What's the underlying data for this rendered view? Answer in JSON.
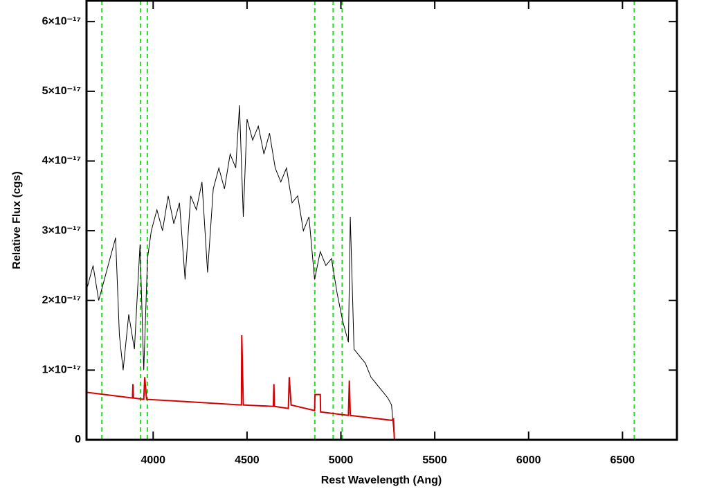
{
  "chart_data": {
    "type": "line",
    "x_label": "Rest Wavelength (Ang)",
    "y_label": "Relative Flux (cgs)",
    "xlim": [
      3645,
      6790
    ],
    "ylim": [
      0,
      6.3e-17
    ],
    "xticks": [
      4000,
      4500,
      5000,
      5500,
      6000,
      6500
    ],
    "yticks": [
      0,
      {
        "value": 1e-17,
        "label": "1×10⁻¹⁷"
      },
      {
        "value": 2e-17,
        "label": "2×10⁻¹⁷"
      },
      {
        "value": 3e-17,
        "label": "3×10⁻¹⁷"
      },
      {
        "value": 4e-17,
        "label": "4×10⁻¹⁷"
      },
      {
        "value": 5e-17,
        "label": "5×10⁻¹⁷"
      },
      {
        "value": 6e-17,
        "label": "6×10⁻¹⁷"
      }
    ],
    "series": [
      {
        "color": "#000000",
        "x": [
          3650,
          3680,
          3710,
          3740,
          3770,
          3800,
          3820,
          3840,
          3870,
          3900,
          3930,
          3950,
          3970,
          3990,
          4020,
          4050,
          4080,
          4110,
          4140,
          4170,
          4200,
          4230,
          4260,
          4290,
          4320,
          4350,
          4380,
          4410,
          4440,
          4460,
          4480,
          4500,
          4530,
          4560,
          4590,
          4620,
          4650,
          4680,
          4710,
          4740,
          4770,
          4800,
          4830,
          4860,
          4890,
          4920,
          4950,
          4980,
          5010,
          5040,
          5050,
          5070,
          5100,
          5130,
          5160,
          5190,
          5220,
          5250,
          5270,
          5285,
          6790
        ],
        "values": [
          2.2e-17,
          2.5e-17,
          2e-17,
          2.3e-17,
          2.6e-17,
          2.9e-17,
          1.5e-17,
          1e-17,
          1.8e-17,
          1.3e-17,
          2.8e-17,
          1e-17,
          2.6e-17,
          3e-17,
          3.3e-17,
          3e-17,
          3.5e-17,
          3.1e-17,
          3.4e-17,
          2.3e-17,
          3.5e-17,
          3.3e-17,
          3.7e-17,
          2.4e-17,
          3.6e-17,
          3.9e-17,
          3.6e-17,
          4.1e-17,
          3.9e-17,
          4.8e-17,
          3.2e-17,
          4.6e-17,
          4.3e-17,
          4.5e-17,
          4.1e-17,
          4.4e-17,
          3.9e-17,
          3.7e-17,
          3.9e-17,
          3.4e-17,
          3.5e-17,
          3e-17,
          3.2e-17,
          2.3e-17,
          2.7e-17,
          2.5e-17,
          2.6e-17,
          2.1e-17,
          1.7e-17,
          1.4e-17,
          3.2e-17,
          1.3e-17,
          1.2e-17,
          1.1e-17,
          9e-18,
          8e-18,
          7e-18,
          6e-18,
          5e-18,
          0,
          0
        ]
      },
      {
        "color": "#d40000",
        "x": [
          3650,
          3890,
          3892,
          3895,
          3950,
          3955,
          3965,
          4170,
          4470,
          4472,
          4480,
          4640,
          4643,
          4646,
          4720,
          4725,
          4735,
          4860,
          4862,
          4890,
          4892,
          5040,
          5045,
          5050,
          5270,
          5280,
          5285,
          6790
        ],
        "values": [
          6.8e-18,
          6e-18,
          8e-18,
          6e-18,
          5.8e-18,
          9e-18,
          5.8e-18,
          5.5e-18,
          5e-18,
          1.5e-17,
          5e-18,
          4.8e-18,
          8e-18,
          4.8e-18,
          4.5e-18,
          9e-18,
          5e-18,
          4.2e-18,
          6.5e-18,
          6.5e-18,
          4e-18,
          3.5e-18,
          8.5e-18,
          3.5e-18,
          2.8e-18,
          3e-18,
          0,
          0
        ]
      }
    ],
    "vlines": {
      "color": "#22dd22",
      "x": [
        3727,
        3933,
        3969,
        4861,
        4959,
        5007,
        6563
      ]
    }
  }
}
